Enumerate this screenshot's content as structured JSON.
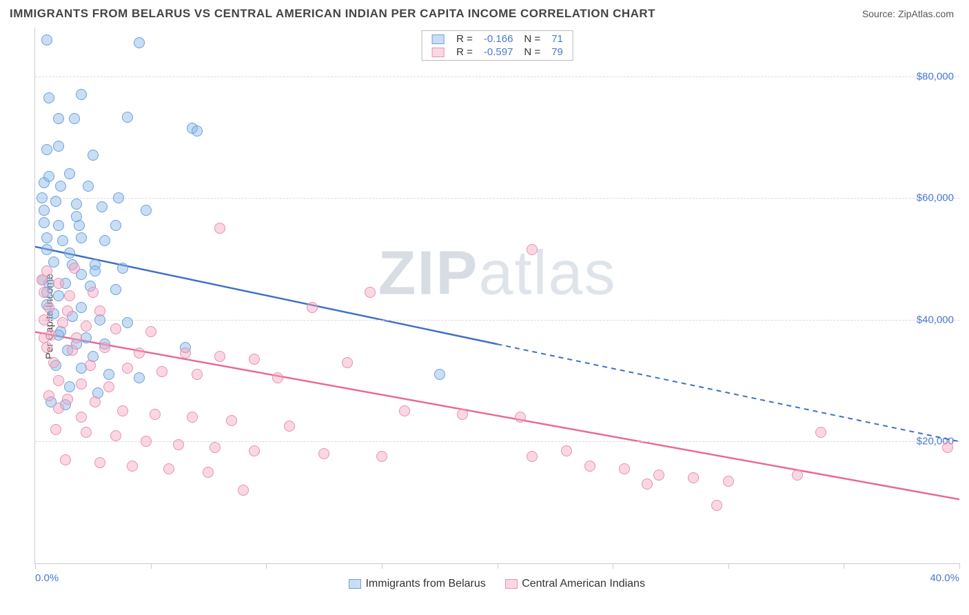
{
  "title": "IMMIGRANTS FROM BELARUS VS CENTRAL AMERICAN INDIAN PER CAPITA INCOME CORRELATION CHART",
  "source_label": "Source: ZipAtlas.com",
  "watermark_a": "ZIP",
  "watermark_b": "atlas",
  "ylabel": "Per Capita Income",
  "chart": {
    "type": "scatter",
    "background_color": "#ffffff",
    "grid_color": "#dadada",
    "axis_color": "#cccccc",
    "xlim": [
      0,
      40
    ],
    "ylim": [
      0,
      88000
    ],
    "ytick_step": 20000,
    "yticks": [
      {
        "v": 20000,
        "label": "$20,000"
      },
      {
        "v": 40000,
        "label": "$40,000"
      },
      {
        "v": 60000,
        "label": "$60,000"
      },
      {
        "v": 80000,
        "label": "$80,000"
      }
    ],
    "xticks_minor": [
      0,
      5,
      10,
      15,
      20,
      25,
      30,
      35,
      40
    ],
    "xtick_labels": [
      {
        "v": 0,
        "label": "0.0%"
      },
      {
        "v": 40,
        "label": "40.0%"
      }
    ],
    "series": [
      {
        "id": "belarus",
        "name": "Immigrants from Belarus",
        "fill": "rgba(135, 181, 230, 0.45)",
        "stroke": "#6aa0d8",
        "line_color": "#3f6fc7",
        "R": "-0.166",
        "N": "71",
        "trend": {
          "x1": 0,
          "y1": 52000,
          "solid_until_x": 20,
          "x2": 40,
          "y2": 20000
        },
        "points": [
          [
            0.5,
            86000
          ],
          [
            4.5,
            85500
          ],
          [
            0.6,
            76500
          ],
          [
            2.0,
            77000
          ],
          [
            1.0,
            73000
          ],
          [
            1.7,
            73000
          ],
          [
            4.0,
            73300
          ],
          [
            6.8,
            71500
          ],
          [
            7.0,
            71000
          ],
          [
            0.5,
            68000
          ],
          [
            1.0,
            68500
          ],
          [
            2.5,
            67000
          ],
          [
            1.5,
            64000
          ],
          [
            0.4,
            62500
          ],
          [
            0.3,
            60000
          ],
          [
            0.9,
            59500
          ],
          [
            1.8,
            59000
          ],
          [
            2.9,
            58500
          ],
          [
            4.8,
            58000
          ],
          [
            0.4,
            56000
          ],
          [
            1.0,
            55500
          ],
          [
            1.9,
            55500
          ],
          [
            3.5,
            55500
          ],
          [
            0.5,
            53500
          ],
          [
            1.2,
            53000
          ],
          [
            2.0,
            53500
          ],
          [
            3.0,
            53000
          ],
          [
            0.5,
            51500
          ],
          [
            1.5,
            51000
          ],
          [
            0.8,
            49500
          ],
          [
            1.6,
            49000
          ],
          [
            2.6,
            49000
          ],
          [
            2.0,
            47500
          ],
          [
            0.6,
            46000
          ],
          [
            1.3,
            46000
          ],
          [
            2.4,
            45500
          ],
          [
            3.5,
            45000
          ],
          [
            1.0,
            44000
          ],
          [
            0.5,
            42500
          ],
          [
            2.0,
            42000
          ],
          [
            0.8,
            41000
          ],
          [
            1.6,
            40500
          ],
          [
            2.8,
            40000
          ],
          [
            4.0,
            39500
          ],
          [
            1.1,
            38000
          ],
          [
            2.2,
            37000
          ],
          [
            3.0,
            36000
          ],
          [
            1.4,
            35000
          ],
          [
            2.5,
            34000
          ],
          [
            6.5,
            35500
          ],
          [
            0.9,
            32500
          ],
          [
            2.0,
            32000
          ],
          [
            3.2,
            31000
          ],
          [
            4.5,
            30500
          ],
          [
            17.5,
            31000
          ],
          [
            1.5,
            29000
          ],
          [
            2.7,
            28000
          ],
          [
            0.7,
            26500
          ],
          [
            1.3,
            26000
          ],
          [
            0.6,
            63500
          ],
          [
            1.1,
            62000
          ],
          [
            2.3,
            62000
          ],
          [
            3.6,
            60000
          ],
          [
            0.4,
            58000
          ],
          [
            1.8,
            57000
          ],
          [
            0.5,
            44500
          ],
          [
            3.8,
            48500
          ],
          [
            0.3,
            46500
          ],
          [
            1.0,
            37500
          ],
          [
            1.8,
            36000
          ],
          [
            2.6,
            48000
          ]
        ]
      },
      {
        "id": "central_am",
        "name": "Central American Indians",
        "fill": "rgba(244, 166, 193, 0.45)",
        "stroke": "#e88fb0",
        "line_color": "#e86a93",
        "R": "-0.597",
        "N": "79",
        "trend": {
          "x1": 0,
          "y1": 38000,
          "solid_until_x": 40,
          "x2": 40,
          "y2": 10500
        },
        "points": [
          [
            8.0,
            55000
          ],
          [
            21.5,
            51500
          ],
          [
            0.5,
            48000
          ],
          [
            0.3,
            46500
          ],
          [
            1.0,
            46000
          ],
          [
            0.4,
            44500
          ],
          [
            1.5,
            44000
          ],
          [
            2.5,
            44500
          ],
          [
            14.5,
            44500
          ],
          [
            0.6,
            42000
          ],
          [
            1.4,
            41500
          ],
          [
            2.8,
            41500
          ],
          [
            0.4,
            40000
          ],
          [
            1.2,
            39500
          ],
          [
            2.2,
            39000
          ],
          [
            3.5,
            38500
          ],
          [
            5.0,
            38000
          ],
          [
            0.7,
            37500
          ],
          [
            1.8,
            37000
          ],
          [
            0.5,
            35500
          ],
          [
            1.6,
            35000
          ],
          [
            3.0,
            35500
          ],
          [
            4.5,
            34500
          ],
          [
            6.5,
            34500
          ],
          [
            8.0,
            34000
          ],
          [
            9.5,
            33500
          ],
          [
            12.0,
            42000
          ],
          [
            0.8,
            33000
          ],
          [
            2.4,
            32500
          ],
          [
            4.0,
            32000
          ],
          [
            5.5,
            31500
          ],
          [
            7.0,
            31000
          ],
          [
            10.5,
            30500
          ],
          [
            1.0,
            30000
          ],
          [
            2.0,
            29500
          ],
          [
            3.2,
            29000
          ],
          [
            0.6,
            27500
          ],
          [
            1.4,
            27000
          ],
          [
            2.6,
            26500
          ],
          [
            16.0,
            25000
          ],
          [
            18.5,
            24500
          ],
          [
            21.0,
            24000
          ],
          [
            3.8,
            25000
          ],
          [
            5.2,
            24500
          ],
          [
            6.8,
            24000
          ],
          [
            8.5,
            23500
          ],
          [
            11.0,
            22500
          ],
          [
            0.9,
            22000
          ],
          [
            2.2,
            21500
          ],
          [
            3.5,
            21000
          ],
          [
            34.0,
            21500
          ],
          [
            39.5,
            19000
          ],
          [
            4.8,
            20000
          ],
          [
            6.2,
            19500
          ],
          [
            7.8,
            19000
          ],
          [
            9.5,
            18500
          ],
          [
            12.5,
            18000
          ],
          [
            15.0,
            17500
          ],
          [
            21.5,
            17500
          ],
          [
            1.3,
            17000
          ],
          [
            2.8,
            16500
          ],
          [
            4.2,
            16000
          ],
          [
            5.8,
            15500
          ],
          [
            7.5,
            15000
          ],
          [
            25.5,
            15500
          ],
          [
            27.0,
            14500
          ],
          [
            28.5,
            14000
          ],
          [
            30.0,
            13500
          ],
          [
            33.0,
            14500
          ],
          [
            9.0,
            12000
          ],
          [
            29.5,
            9500
          ],
          [
            26.5,
            13000
          ],
          [
            24.0,
            16000
          ],
          [
            23.0,
            18500
          ],
          [
            13.5,
            33000
          ],
          [
            1.0,
            25500
          ],
          [
            2.0,
            24000
          ],
          [
            0.4,
            37000
          ],
          [
            1.7,
            48500
          ]
        ]
      }
    ]
  },
  "legend_bottom": [
    {
      "series": "belarus",
      "label": "Immigrants from Belarus"
    },
    {
      "series": "central_am",
      "label": "Central American Indians"
    }
  ]
}
